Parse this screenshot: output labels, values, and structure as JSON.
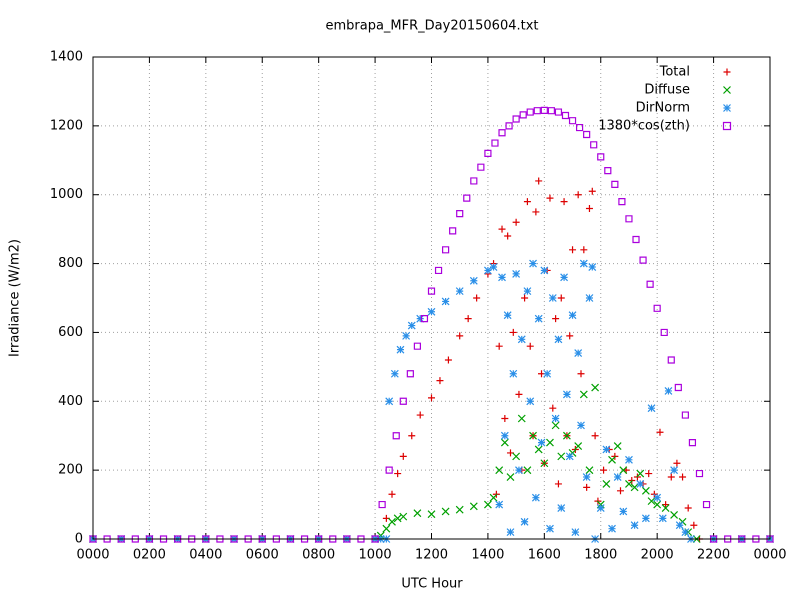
{
  "chart_data": {
    "type": "scatter",
    "title": "embrapa_MFR_Day20150604.txt",
    "xlabel": "UTC Hour",
    "ylabel": "Irradiance (W/m2)",
    "xlim": [
      0,
      24
    ],
    "xticks": [
      {
        "value": 0,
        "label": "0000"
      },
      {
        "value": 2,
        "label": "0200"
      },
      {
        "value": 4,
        "label": "0400"
      },
      {
        "value": 6,
        "label": "0600"
      },
      {
        "value": 8,
        "label": "0800"
      },
      {
        "value": 10,
        "label": "1000"
      },
      {
        "value": 12,
        "label": "1200"
      },
      {
        "value": 14,
        "label": "1400"
      },
      {
        "value": 16,
        "label": "1600"
      },
      {
        "value": 18,
        "label": "1800"
      },
      {
        "value": 20,
        "label": "2000"
      },
      {
        "value": 22,
        "label": "2200"
      },
      {
        "value": 24,
        "label": "0000"
      }
    ],
    "ylim": [
      0,
      1400
    ],
    "yticks": [
      0,
      200,
      400,
      600,
      800,
      1000,
      1200,
      1400
    ],
    "grid": true,
    "legend": "top-right",
    "series": [
      {
        "name": "Total",
        "color": "#dd0000",
        "marker": "plus",
        "x": [
          0,
          1,
          2,
          3,
          4,
          5,
          6,
          7,
          8,
          9,
          10,
          10.4,
          10.6,
          10.8,
          11,
          11.3,
          11.6,
          12,
          12.3,
          12.6,
          13,
          13.3,
          13.6,
          14,
          14.2,
          14.3,
          14.4,
          14.5,
          14.6,
          14.7,
          14.8,
          14.9,
          15,
          15.1,
          15.2,
          15.3,
          15.4,
          15.5,
          15.6,
          15.7,
          15.8,
          15.9,
          16,
          16.1,
          16.2,
          16.3,
          16.4,
          16.5,
          16.6,
          16.7,
          16.8,
          16.9,
          17,
          17.1,
          17.2,
          17.3,
          17.4,
          17.5,
          17.6,
          17.7,
          17.8,
          17.9,
          18.1,
          18.3,
          18.5,
          18.7,
          18.9,
          19.1,
          19.3,
          19.5,
          19.7,
          19.9,
          20.1,
          20.3,
          20.5,
          20.7,
          20.9,
          21.1,
          21.3,
          21.5,
          22,
          23,
          24
        ],
        "values": [
          0,
          0,
          0,
          0,
          0,
          0,
          0,
          0,
          0,
          0,
          0,
          60,
          130,
          190,
          240,
          300,
          360,
          410,
          460,
          520,
          590,
          640,
          700,
          770,
          800,
          130,
          560,
          900,
          350,
          880,
          250,
          600,
          920,
          420,
          200,
          700,
          980,
          560,
          300,
          950,
          1040,
          480,
          220,
          780,
          990,
          380,
          640,
          160,
          700,
          980,
          300,
          590,
          840,
          260,
          1000,
          480,
          840,
          150,
          960,
          1010,
          300,
          110,
          200,
          260,
          240,
          140,
          200,
          170,
          180,
          160,
          190,
          130,
          310,
          100,
          180,
          220,
          180,
          90,
          40,
          0,
          0,
          0,
          0
        ]
      },
      {
        "name": "Diffuse",
        "color": "#00a000",
        "marker": "cross",
        "x": [
          0,
          1,
          2,
          3,
          4,
          5,
          6,
          7,
          8,
          9,
          10,
          10.2,
          10.4,
          10.6,
          10.8,
          11,
          11.5,
          12,
          12.5,
          13,
          13.5,
          14,
          14.2,
          14.4,
          14.6,
          14.8,
          15,
          15.2,
          15.4,
          15.6,
          15.8,
          16,
          16.2,
          16.4,
          16.6,
          16.8,
          17,
          17.2,
          17.4,
          17.6,
          17.8,
          18,
          18.2,
          18.4,
          18.6,
          18.8,
          19,
          19.2,
          19.4,
          19.6,
          19.8,
          20,
          20.3,
          20.6,
          20.9,
          21.1,
          21.4,
          22,
          23,
          24
        ],
        "values": [
          0,
          0,
          0,
          0,
          0,
          0,
          0,
          0,
          0,
          0,
          0,
          10,
          30,
          50,
          60,
          65,
          75,
          72,
          80,
          85,
          95,
          100,
          120,
          200,
          280,
          180,
          240,
          350,
          200,
          300,
          260,
          220,
          280,
          330,
          240,
          300,
          250,
          270,
          420,
          200,
          440,
          100,
          160,
          230,
          270,
          200,
          160,
          150,
          190,
          140,
          110,
          100,
          90,
          70,
          50,
          20,
          0,
          0,
          0,
          0
        ]
      },
      {
        "name": "DirNorm",
        "color": "#2a8fe8",
        "marker": "star",
        "x": [
          0,
          1,
          2,
          3,
          4,
          5,
          6,
          7,
          8,
          9,
          10,
          10.2,
          10.4,
          10.5,
          10.7,
          10.9,
          11.1,
          11.3,
          11.6,
          12,
          12.5,
          13,
          13.5,
          14,
          14.2,
          14.4,
          14.5,
          14.6,
          14.7,
          14.8,
          14.9,
          15,
          15.1,
          15.2,
          15.3,
          15.4,
          15.5,
          15.6,
          15.7,
          15.8,
          15.9,
          16,
          16.1,
          16.2,
          16.3,
          16.4,
          16.5,
          16.6,
          16.7,
          16.8,
          16.9,
          17,
          17.1,
          17.2,
          17.3,
          17.4,
          17.5,
          17.6,
          17.7,
          17.8,
          18,
          18.2,
          18.4,
          18.6,
          18.8,
          19,
          19.2,
          19.4,
          19.6,
          19.8,
          20,
          20.2,
          20.4,
          20.6,
          20.8,
          21,
          21.2,
          22,
          23,
          24
        ],
        "values": [
          0,
          0,
          0,
          0,
          0,
          0,
          0,
          0,
          0,
          0,
          0,
          0,
          0,
          400,
          480,
          550,
          590,
          620,
          640,
          660,
          690,
          720,
          750,
          780,
          790,
          100,
          760,
          300,
          650,
          20,
          480,
          770,
          200,
          580,
          50,
          720,
          400,
          800,
          120,
          640,
          280,
          780,
          480,
          30,
          700,
          350,
          580,
          90,
          760,
          420,
          240,
          650,
          20,
          540,
          330,
          800,
          180,
          700,
          790,
          0,
          90,
          260,
          30,
          180,
          80,
          230,
          40,
          160,
          60,
          380,
          120,
          60,
          430,
          200,
          40,
          20,
          0,
          0,
          0,
          0
        ]
      },
      {
        "name": "1380*cos(zth)",
        "color": "#aa00dd",
        "marker": "square",
        "x": [
          0,
          0.5,
          1,
          1.5,
          2,
          2.5,
          3,
          3.5,
          4,
          4.5,
          5,
          5.5,
          6,
          6.5,
          7,
          7.5,
          8,
          8.5,
          9,
          9.5,
          10,
          10.25,
          10.5,
          10.75,
          11,
          11.25,
          11.5,
          11.75,
          12,
          12.25,
          12.5,
          12.75,
          13,
          13.25,
          13.5,
          13.75,
          14,
          14.25,
          14.5,
          14.75,
          15,
          15.25,
          15.5,
          15.75,
          16,
          16.25,
          16.5,
          16.75,
          17,
          17.25,
          17.5,
          17.75,
          18,
          18.25,
          18.5,
          18.75,
          19,
          19.25,
          19.5,
          19.75,
          20,
          20.25,
          20.5,
          20.75,
          21,
          21.25,
          21.5,
          21.75,
          22,
          22.5,
          23,
          23.5,
          24
        ],
        "values": [
          0,
          0,
          0,
          0,
          0,
          0,
          0,
          0,
          0,
          0,
          0,
          0,
          0,
          0,
          0,
          0,
          0,
          0,
          0,
          0,
          0,
          100,
          200,
          300,
          400,
          480,
          560,
          640,
          720,
          780,
          840,
          895,
          945,
          990,
          1040,
          1080,
          1120,
          1150,
          1180,
          1200,
          1220,
          1232,
          1240,
          1244,
          1245,
          1244,
          1240,
          1230,
          1215,
          1195,
          1175,
          1145,
          1110,
          1070,
          1030,
          980,
          930,
          870,
          810,
          740,
          670,
          600,
          520,
          440,
          360,
          280,
          190,
          100,
          0,
          0,
          0,
          0,
          0
        ]
      }
    ]
  }
}
